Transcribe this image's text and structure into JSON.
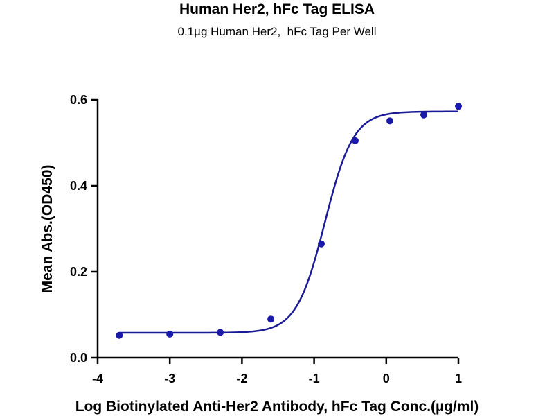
{
  "chart_data": {
    "type": "scatter",
    "title": "Human Her2, hFc Tag ELISA",
    "subtitle": "0.1µg Human Her2,  hFc Tag Per Well",
    "xlabel": "Log Biotinylated Anti-Her2 Antibody, hFc Tag Conc.(µg/ml)",
    "ylabel": "Mean Abs.(OD450)",
    "xlim": [
      -4,
      1
    ],
    "ylim": [
      0,
      0.6
    ],
    "x_ticks": [
      "-4",
      "-3",
      "-2",
      "-1",
      "0",
      "1"
    ],
    "y_ticks": [
      "0.0",
      "0.2",
      "0.4",
      "0.6"
    ],
    "grid": false,
    "legend": "none",
    "series": [
      {
        "points": [
          {
            "x": -3.7,
            "y": 0.052
          },
          {
            "x": -3.0,
            "y": 0.055
          },
          {
            "x": -2.3,
            "y": 0.059
          },
          {
            "x": -1.6,
            "y": 0.09
          },
          {
            "x": -0.9,
            "y": 0.265
          },
          {
            "x": -0.43,
            "y": 0.505
          },
          {
            "x": 0.05,
            "y": 0.551
          },
          {
            "x": 0.52,
            "y": 0.565
          },
          {
            "x": 1.0,
            "y": 0.585
          }
        ]
      }
    ],
    "fit_curve": {
      "model": "4PL",
      "bottom": 0.058,
      "top": 0.573,
      "logEC50": -0.85,
      "hill_slope": 2.2
    },
    "colors": {
      "points": "#1a1aaa",
      "curve": "#1a1a96",
      "axis": "#000000"
    }
  }
}
